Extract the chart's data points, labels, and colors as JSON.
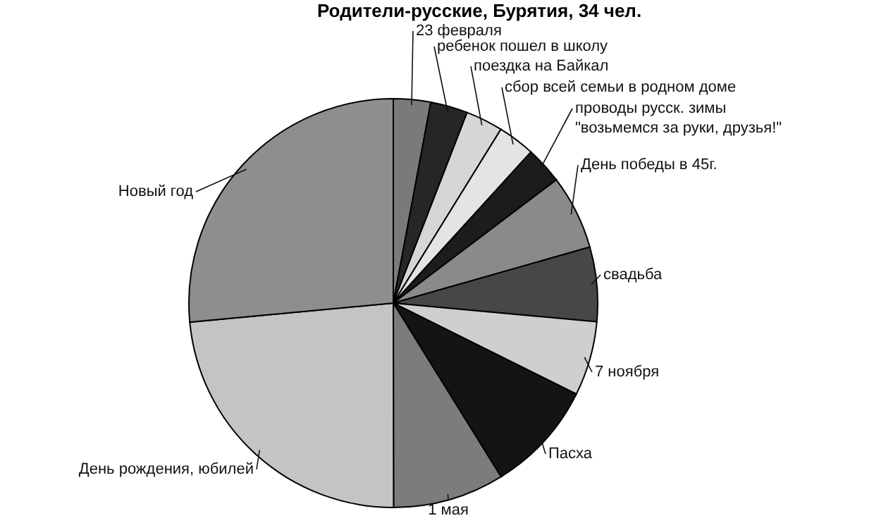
{
  "chart_data": {
    "type": "pie",
    "title": "Родители-русские, Бурятия, 34 чел.",
    "categories": [
      "23 февраля",
      "ребенок пошел в школу",
      "поездка на Байкал",
      "сбор всей семьи в родном доме",
      "проводы русск. зимы\n\"возьмемся за руки, друзья!\"",
      "День победы  в 45г.",
      "свадьба",
      "7 ноября",
      "Пасха",
      "1 мая",
      "День рождения, юбилей",
      "Новый год"
    ],
    "values": [
      2.94,
      2.94,
      2.94,
      2.94,
      2.94,
      5.88,
      5.88,
      5.88,
      8.82,
      8.82,
      23.53,
      26.49
    ],
    "colors": [
      "#7a7a7a",
      "#262626",
      "#d6d6d6",
      "#e4e4e4",
      "#1c1c1c",
      "#8a8a8a",
      "#474747",
      "#cfcfcf",
      "#141414",
      "#7c7c7c",
      "#c4c4c4",
      "#8e8e8e"
    ]
  }
}
